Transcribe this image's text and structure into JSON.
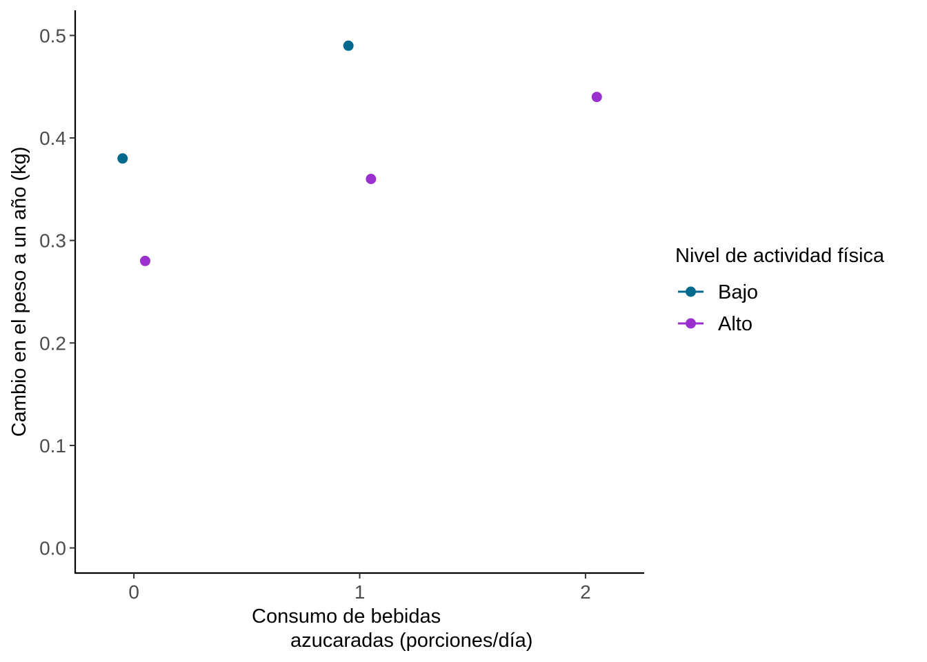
{
  "chart_data": {
    "type": "scatter",
    "title": "",
    "xlabel": "Consumo de bebidas\n        azucaradas (porciones/día)",
    "ylabel": "Cambio en el peso a un año (kg)",
    "xlim": [
      -0.26,
      2.26
    ],
    "ylim": [
      -0.0245,
      0.5245
    ],
    "x_ticks": [
      0,
      1,
      2
    ],
    "x_tick_labels": [
      "0",
      "1",
      "2"
    ],
    "y_ticks": [
      0.0,
      0.1,
      0.2,
      0.3,
      0.4,
      0.5
    ],
    "y_tick_labels": [
      "0.0",
      "0.1",
      "0.2",
      "0.3",
      "0.4",
      "0.5"
    ],
    "grid": false,
    "legend": {
      "title": "Nivel de actividad física",
      "placement": "right"
    },
    "series": [
      {
        "name": "Bajo",
        "color": "#006a8e",
        "points": [
          {
            "x": -0.05,
            "y": 0.38
          },
          {
            "x": 0.95,
            "y": 0.49
          }
        ]
      },
      {
        "name": "Alto",
        "color": "#9b30d0",
        "points": [
          {
            "x": 0.05,
            "y": 0.28
          },
          {
            "x": 1.05,
            "y": 0.36
          },
          {
            "x": 2.05,
            "y": 0.44
          }
        ]
      }
    ]
  }
}
